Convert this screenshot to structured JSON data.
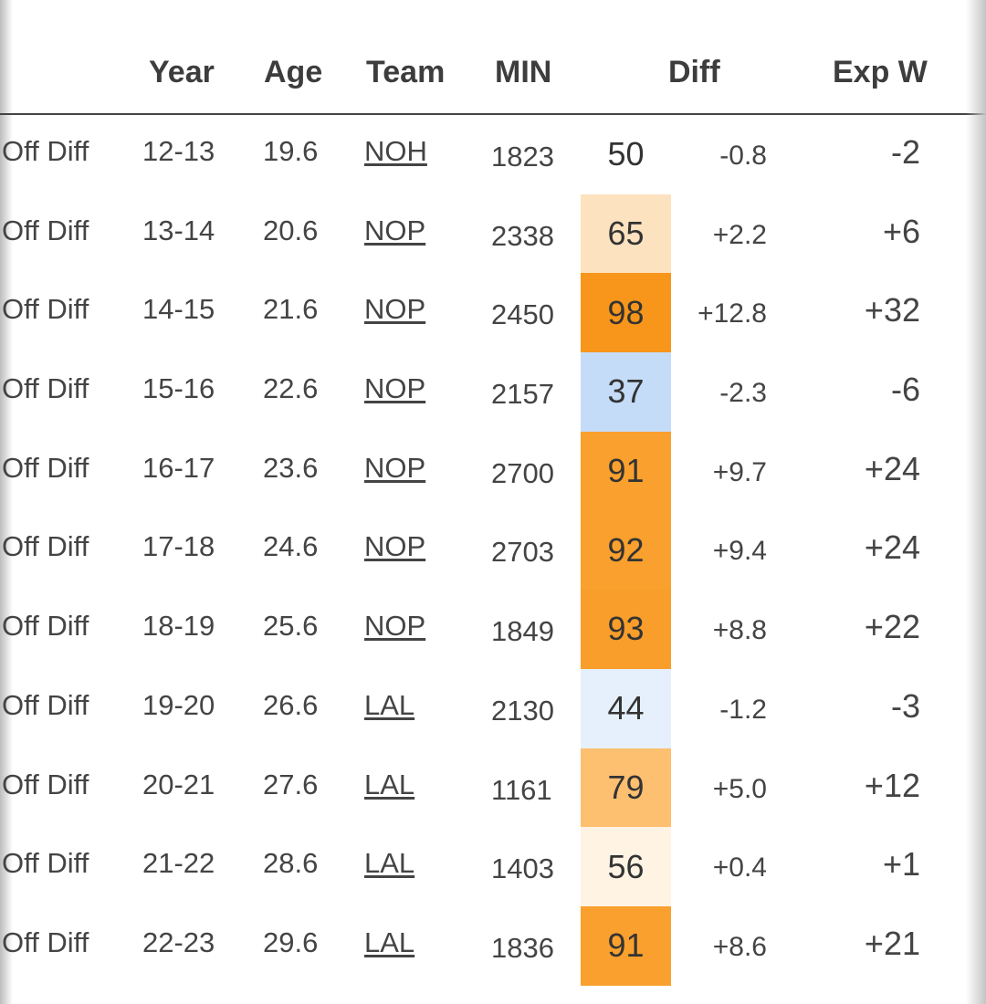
{
  "headers": {
    "year": "Year",
    "age": "Age",
    "team": "Team",
    "min": "MIN",
    "diff": "Diff",
    "expw": "Exp W"
  },
  "rows": [
    {
      "stat": "Off Diff",
      "year": "12-13",
      "age": "19.6",
      "team": "NOH",
      "min": "1823",
      "pct": "50",
      "pct_color": "#ffffff",
      "diff": "-0.8",
      "expw": "-2"
    },
    {
      "stat": "Off Diff",
      "year": "13-14",
      "age": "20.6",
      "team": "NOP",
      "min": "2338",
      "pct": "65",
      "pct_color": "#fde2c0",
      "diff": "+2.2",
      "expw": "+6"
    },
    {
      "stat": "Off Diff",
      "year": "14-15",
      "age": "21.6",
      "team": "NOP",
      "min": "2450",
      "pct": "98",
      "pct_color": "#f7961a",
      "diff": "+12.8",
      "expw": "+32"
    },
    {
      "stat": "Off Diff",
      "year": "15-16",
      "age": "22.6",
      "team": "NOP",
      "min": "2157",
      "pct": "37",
      "pct_color": "#c5dcf8",
      "diff": "-2.3",
      "expw": "-6"
    },
    {
      "stat": "Off Diff",
      "year": "16-17",
      "age": "23.6",
      "team": "NOP",
      "min": "2700",
      "pct": "91",
      "pct_color": "#f9a02e",
      "diff": "+9.7",
      "expw": "+24"
    },
    {
      "stat": "Off Diff",
      "year": "17-18",
      "age": "24.6",
      "team": "NOP",
      "min": "2703",
      "pct": "92",
      "pct_color": "#f9a02e",
      "diff": "+9.4",
      "expw": "+24"
    },
    {
      "stat": "Off Diff",
      "year": "18-19",
      "age": "25.6",
      "team": "NOP",
      "min": "1849",
      "pct": "93",
      "pct_color": "#f99e2a",
      "diff": "+8.8",
      "expw": "+22"
    },
    {
      "stat": "Off Diff",
      "year": "19-20",
      "age": "26.6",
      "team": "LAL",
      "min": "2130",
      "pct": "44",
      "pct_color": "#e6f0fc",
      "diff": "-1.2",
      "expw": "-3"
    },
    {
      "stat": "Off Diff",
      "year": "20-21",
      "age": "27.6",
      "team": "LAL",
      "min": "1161",
      "pct": "79",
      "pct_color": "#fdbf70",
      "diff": "+5.0",
      "expw": "+12"
    },
    {
      "stat": "Off Diff",
      "year": "21-22",
      "age": "28.6",
      "team": "LAL",
      "min": "1403",
      "pct": "56",
      "pct_color": "#fff3e4",
      "diff": "+0.4",
      "expw": "+1"
    },
    {
      "stat": "Off Diff",
      "year": "22-23",
      "age": "29.6",
      "team": "LAL",
      "min": "1836",
      "pct": "91",
      "pct_color": "#f9a02e",
      "diff": "+8.6",
      "expw": "+21"
    }
  ]
}
